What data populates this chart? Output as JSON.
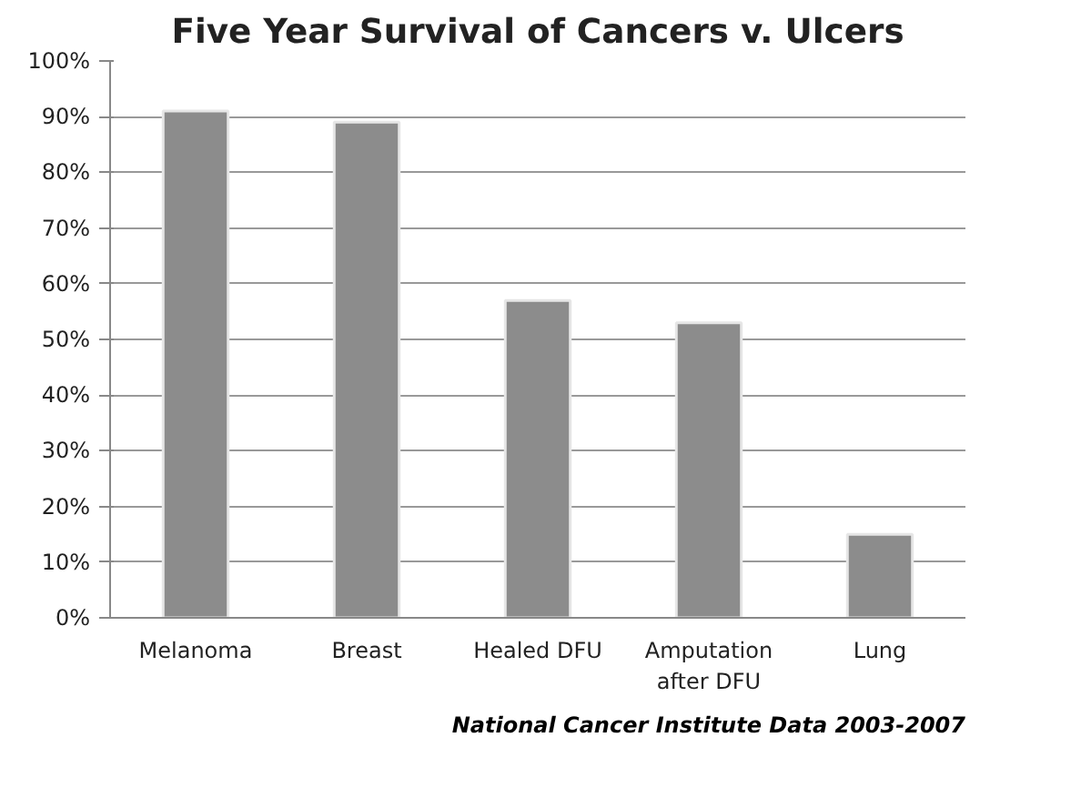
{
  "chart_data": {
    "type": "bar",
    "title": "Five Year Survival of Cancers v. Ulcers",
    "categories": [
      "Melanoma",
      "Breast",
      "Healed DFU",
      "Amputation after DFU",
      "Lung"
    ],
    "values": [
      91,
      89,
      57,
      53,
      15
    ],
    "color": "#8c8c8c",
    "ylim": [
      0,
      100
    ],
    "yticks": [
      {
        "value": 0,
        "label": "0%"
      },
      {
        "value": 10,
        "label": "10%"
      },
      {
        "value": 20,
        "label": "20%"
      },
      {
        "value": 30,
        "label": "30%"
      },
      {
        "value": 40,
        "label": "40%"
      },
      {
        "value": 50,
        "label": "50%"
      },
      {
        "value": 60,
        "label": "60%"
      },
      {
        "value": 70,
        "label": "70%"
      },
      {
        "value": 80,
        "label": "80%"
      },
      {
        "value": 90,
        "label": "90%"
      },
      {
        "value": 100,
        "label": "100%"
      }
    ],
    "grid": "y",
    "annotations": [
      "National Cancer Institute Data 2003-2007"
    ]
  }
}
